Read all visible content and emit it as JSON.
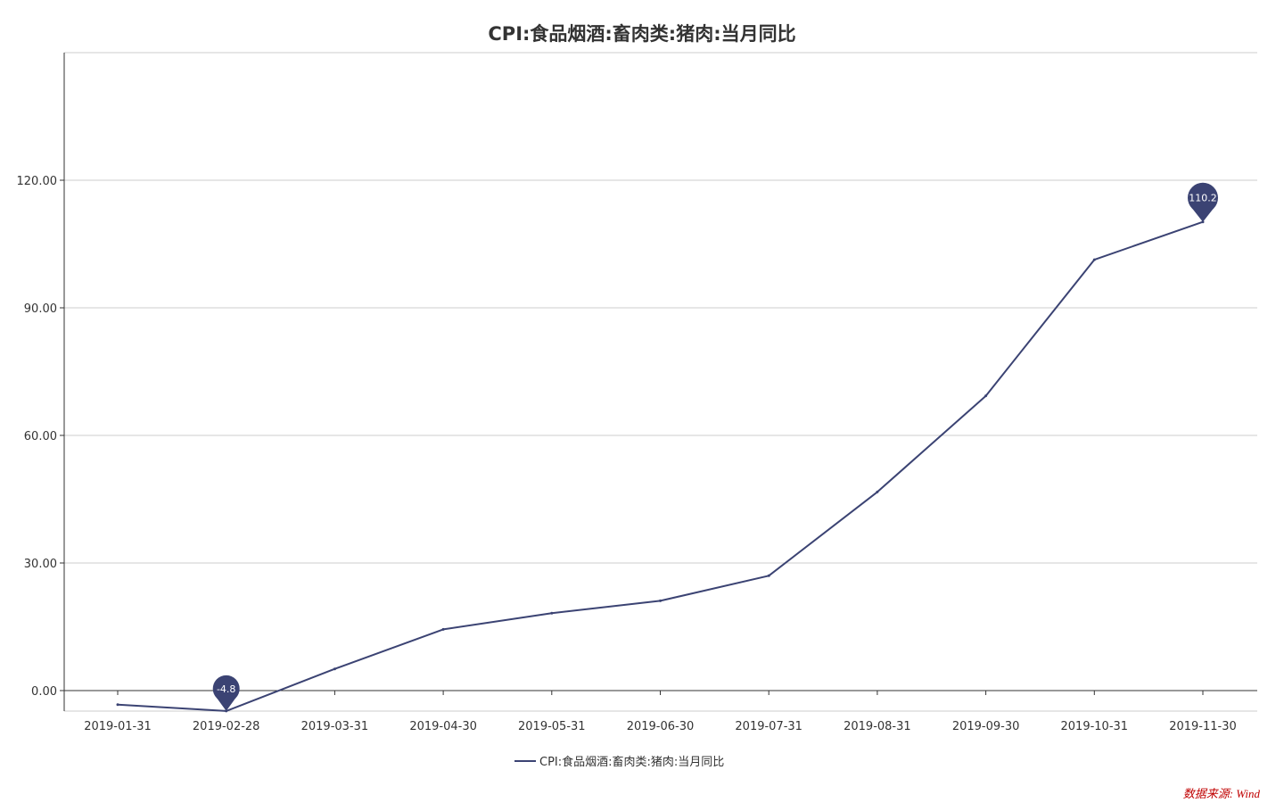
{
  "colors": {
    "series": "#3b4373",
    "grid": "#cccccc",
    "axis": "#333333",
    "source": "#c00000"
  },
  "chart_data": {
    "type": "line",
    "title": "CPI:食品烟酒:畜肉类:猪肉:当月同比",
    "xlabel": "",
    "ylabel": "",
    "categories": [
      "2019-01-31",
      "2019-02-28",
      "2019-03-31",
      "2019-04-30",
      "2019-05-31",
      "2019-06-30",
      "2019-07-31",
      "2019-08-31",
      "2019-09-30",
      "2019-10-31",
      "2019-11-30"
    ],
    "series": [
      {
        "name": "CPI:食品烟酒:畜肉类:猪肉:当月同比",
        "values": [
          -3.3,
          -4.8,
          5.1,
          14.4,
          18.2,
          21.1,
          27.0,
          46.7,
          69.3,
          101.3,
          110.2
        ]
      }
    ],
    "y_ticks": [
      "0.00",
      "30.00",
      "60.00",
      "90.00",
      "120.00"
    ],
    "ylim": [
      -5,
      150
    ],
    "grid": true,
    "legend": "bottom-center",
    "markers": [
      {
        "label": "-4.8",
        "index": 1
      },
      {
        "label": "110.2",
        "index": 10
      }
    ]
  },
  "source": "数据来源: Wind"
}
